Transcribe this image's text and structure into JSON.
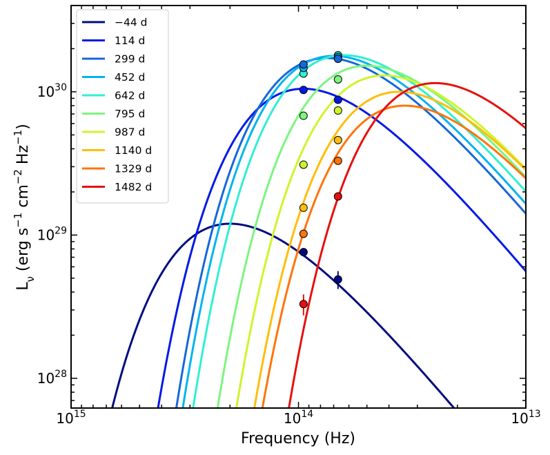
{
  "chart_data": {
    "type": "line",
    "title": "",
    "xlabel": "Frequency (Hz)",
    "ylabel": "L_ν (erg s⁻¹ cm⁻² Hz⁻¹)",
    "xscale": "log",
    "yscale": "log",
    "xaxis_inverted": true,
    "xlim": [
      1000000000000000.0,
      10000000000000.0
    ],
    "ylim": [
      6.2e+27,
      4e+30
    ],
    "x_ticks": [
      {
        "value": 1000000000000000.0,
        "base": "10",
        "exp": "15"
      },
      {
        "value": 100000000000000.0,
        "base": "10",
        "exp": "14"
      },
      {
        "value": 10000000000000.0,
        "base": "10",
        "exp": "13"
      }
    ],
    "y_ticks": [
      {
        "value": 1e+28,
        "base": "10",
        "exp": "28"
      },
      {
        "value": 1e+29,
        "base": "10",
        "exp": "29"
      },
      {
        "value": 1e+30,
        "base": "10",
        "exp": "30"
      }
    ],
    "legend_position": "upper-left",
    "series": [
      {
        "name": "−44 d",
        "color": "#000c80",
        "peak_freq": 200000000000000.0,
        "peak_lum": 1.2e+29,
        "points": [
          {
            "x": 95000000000000.0,
            "y": 7.6e+28
          },
          {
            "x": 67000000000000.0,
            "y": 4.9e+28,
            "err": 7e+27
          }
        ]
      },
      {
        "name": "114 d",
        "color": "#0019e6",
        "peak_freq": 95000000000000.0,
        "peak_lum": 1.05e+30,
        "points": [
          {
            "x": 95000000000000.0,
            "y": 1.03e+30
          },
          {
            "x": 67000000000000.0,
            "y": 8.8e+29
          }
        ]
      },
      {
        "name": "299 d",
        "color": "#1467dc",
        "peak_freq": 75000000000000.0,
        "peak_lum": 1.72e+30,
        "points": [
          {
            "x": 95000000000000.0,
            "y": 1.55e+30
          },
          {
            "x": 67000000000000.0,
            "y": 1.7e+30
          }
        ]
      },
      {
        "name": "452 d",
        "color": "#00b4ef",
        "peak_freq": 70000000000000.0,
        "peak_lum": 1.78e+30,
        "points": [
          {
            "x": 95000000000000.0,
            "y": 1.47e+30
          },
          {
            "x": 67000000000000.0,
            "y": 1.75e+30
          }
        ]
      },
      {
        "name": "642 d",
        "color": "#2ef0d2",
        "peak_freq": 63000000000000.0,
        "peak_lum": 1.8e+30,
        "points": [
          {
            "x": 95000000000000.0,
            "y": 1.34e+30
          },
          {
            "x": 67000000000000.0,
            "y": 1.8e+30
          }
        ]
      },
      {
        "name": "795 d",
        "color": "#7cf57e",
        "peak_freq": 50000000000000.0,
        "peak_lum": 1.52e+30,
        "points": [
          {
            "x": 95000000000000.0,
            "y": 6.8e+29
          },
          {
            "x": 67000000000000.0,
            "y": 1.22e+30
          }
        ]
      },
      {
        "name": "987 d",
        "color": "#cdf52b",
        "peak_freq": 42000000000000.0,
        "peak_lum": 1.3e+30,
        "points": [
          {
            "x": 95000000000000.0,
            "y": 3.1e+29
          },
          {
            "x": 67000000000000.0,
            "y": 7.4e+29
          }
        ]
      },
      {
        "name": "1140 d",
        "color": "#ffbd0a",
        "peak_freq": 36000000000000.0,
        "peak_lum": 1e+30,
        "points": [
          {
            "x": 95000000000000.0,
            "y": 1.55e+29
          },
          {
            "x": 67000000000000.0,
            "y": 4.6e+29
          }
        ]
      },
      {
        "name": "1329 d",
        "color": "#ff740a",
        "peak_freq": 34000000000000.0,
        "peak_lum": 8e+29,
        "points": [
          {
            "x": 95000000000000.0,
            "y": 1.02e+29
          },
          {
            "x": 67000000000000.0,
            "y": 3.3e+29
          }
        ]
      },
      {
        "name": "1482 d",
        "color": "#e6100c",
        "peak_freq": 25000000000000.0,
        "peak_lum": 1.15e+30,
        "points": [
          {
            "x": 95000000000000.0,
            "y": 3.3e+28,
            "err": 5.5e+27
          },
          {
            "x": 67000000000000.0,
            "y": 1.86e+29
          }
        ]
      }
    ]
  }
}
